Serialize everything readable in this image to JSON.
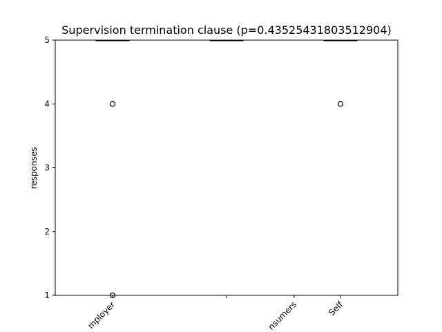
{
  "chart_data": {
    "type": "box",
    "title": "Supervision termination clause (p=0.43525431803512904)",
    "xlabel": "",
    "ylabel": "responses",
    "ylim": [
      1,
      5
    ],
    "yticks": [
      "1",
      "2",
      "3",
      "4",
      "5"
    ],
    "categories": [
      "Employer",
      "",
      "Consumers",
      "Self"
    ],
    "tick_labels_shown": [
      "mployer",
      "",
      "nsumers",
      "Self"
    ],
    "boxes": [
      {
        "position": 1,
        "median": 5,
        "q1": 5,
        "q3": 5,
        "whisker_low": 5,
        "whisker_high": 5,
        "outliers": [
          4,
          1
        ]
      },
      {
        "position": 2,
        "median": 5,
        "q1": 5,
        "q3": 5,
        "whisker_low": 5,
        "whisker_high": 5,
        "outliers": []
      },
      {
        "position": 3,
        "median": 5,
        "q1": 5,
        "q3": 5,
        "whisker_low": 5,
        "whisker_high": 5,
        "outliers": [
          4
        ]
      }
    ],
    "grid": false,
    "colors": {
      "box": "#000000",
      "median": "#ff7f0e",
      "background": "#ffffff"
    }
  }
}
